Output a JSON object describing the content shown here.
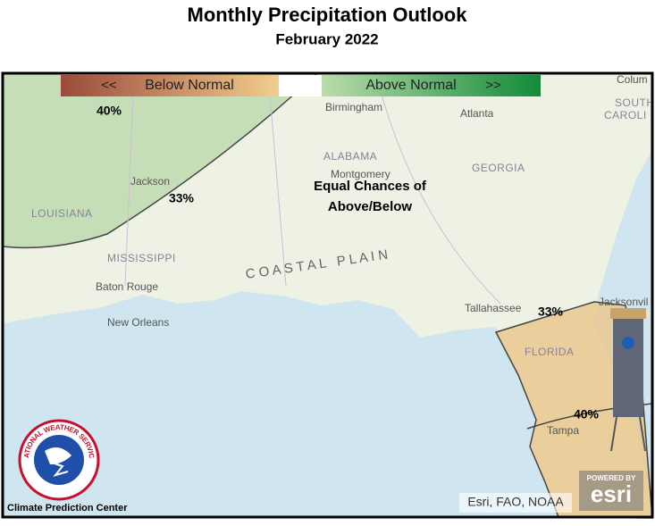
{
  "header": {
    "title": "Monthly Precipitation Outlook",
    "subtitle": "February 2022"
  },
  "legend": {
    "below_arrows": "<<",
    "below": "Below Normal",
    "above": "Above Normal",
    "above_arrows": ">>"
  },
  "contour_labels": [
    "40%",
    "33%",
    "33%",
    "40%"
  ],
  "annotation": [
    "Equal Chances of",
    "Above/Below"
  ],
  "states": [
    "ALABAMA",
    "GEORGIA",
    "LOUISIANA",
    "MISSISSIPPI",
    "FLORIDA",
    "SOUTH",
    "CAROLI"
  ],
  "places": [
    "Birmingham",
    "Atlanta",
    "Montgomery",
    "Jackson",
    "Baton Rouge",
    "New Orleans",
    "Tallahassee",
    "Jacksonvil",
    "Tampa",
    "Colum"
  ],
  "region": "C O A S T A L   P L A I N",
  "credits": {
    "attribution": "Esri, FAO, NOAA",
    "center": "Climate Prediction Center",
    "powered": "POWERED BY",
    "esri": "esri",
    "nws": "NATIONAL WEATHER SERVICE"
  }
}
